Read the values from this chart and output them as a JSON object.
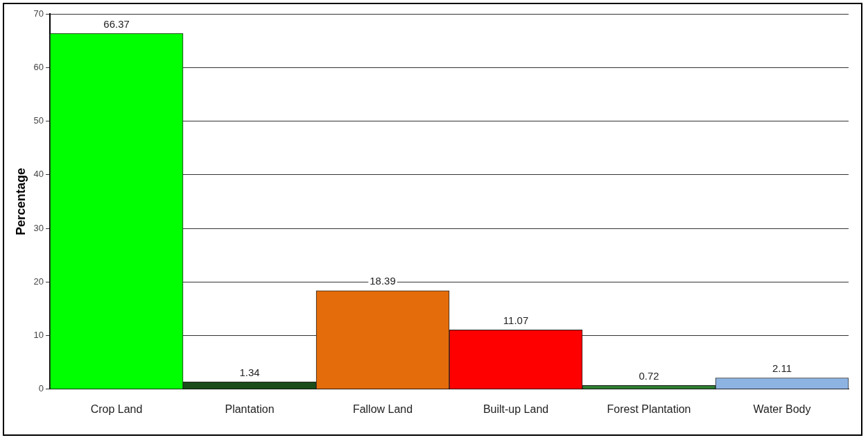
{
  "chart_data": {
    "type": "bar",
    "ylabel": "Percentage",
    "categories": [
      "Crop Land",
      "Plantation",
      "Fallow Land",
      "Built-up Land",
      "Forest Plantation",
      "Water Body"
    ],
    "values": [
      66.37,
      1.34,
      18.39,
      11.07,
      0.72,
      2.11
    ],
    "colors": [
      "#00ff00",
      "#1b4d1b",
      "#e46c0a",
      "#ff0000",
      "#2e7d32",
      "#8db3e2"
    ],
    "ylim": [
      0,
      70
    ],
    "yticks": [
      0,
      10,
      20,
      30,
      40,
      50,
      60,
      70
    ],
    "grid": "y",
    "legend": false,
    "data_labels": true
  }
}
